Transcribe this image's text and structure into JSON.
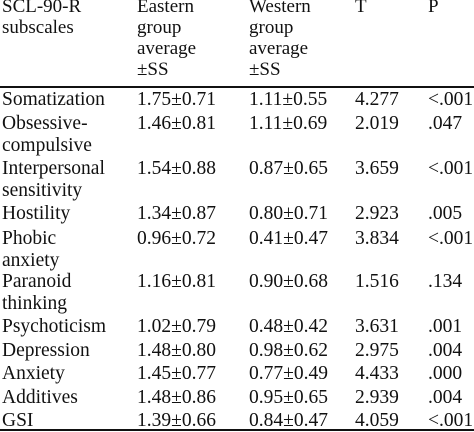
{
  "table": {
    "headers": [
      [
        "SCL-90-R",
        "subscales"
      ],
      [
        "Eastern",
        "group",
        "average",
        "±SS"
      ],
      [
        "Western",
        "group",
        "average",
        "±SS"
      ],
      [
        "T"
      ],
      [
        "P"
      ]
    ],
    "rows": [
      {
        "subscale": [
          "Somatization"
        ],
        "eastern": "1.75±0.71",
        "western": "1.11±0.55",
        "t": "4.277",
        "p": "<.001"
      },
      {
        "subscale": [
          "Obsessive-",
          "compulsive"
        ],
        "eastern": "1.46±0.81",
        "western": "1.11±0.69",
        "t": "2.019",
        "p": ".047"
      },
      {
        "subscale": [
          "Interpersonal",
          "sensitivity"
        ],
        "eastern": "1.54±0.88",
        "western": "0.87±0.65",
        "t": "3.659",
        "p": "<.001"
      },
      {
        "subscale": [
          "Hostility"
        ],
        "eastern": "1.34±0.87",
        "western": "0.80±0.71",
        "t": "2.923",
        "p": ".005"
      },
      {
        "subscale": [
          "Phobic",
          "anxiety"
        ],
        "eastern": "0.96±0.72",
        "western": "0.41±0.47",
        "t": "3.834",
        "p": "<.001"
      },
      {
        "subscale": [
          "Paranoid",
          "thinking"
        ],
        "eastern": "1.16±0.81",
        "western": "0.90±0.68",
        "t": "1.516",
        "p": ".134"
      },
      {
        "subscale": [
          "Psychoticism"
        ],
        "eastern": "1.02±0.79",
        "western": "0.48±0.42",
        "t": "3.631",
        "p": ".001"
      },
      {
        "subscale": [
          "Depression"
        ],
        "eastern": "1.48±0.80",
        "western": "0.98±0.62",
        "t": "2.975",
        "p": ".004"
      },
      {
        "subscale": [
          "Anxiety"
        ],
        "eastern": "1.45±0.77",
        "western": "0.77±0.49",
        "t": "4.433",
        "p": ".000"
      },
      {
        "subscale": [
          "Additives"
        ],
        "eastern": "1.48±0.86",
        "western": "0.95±0.65",
        "t": "2.939",
        "p": ".004"
      },
      {
        "subscale": [
          "GSI"
        ],
        "eastern": "1.39±0.66",
        "western": "0.84±0.47",
        "t": "4.059",
        "p": "<.001"
      }
    ]
  }
}
